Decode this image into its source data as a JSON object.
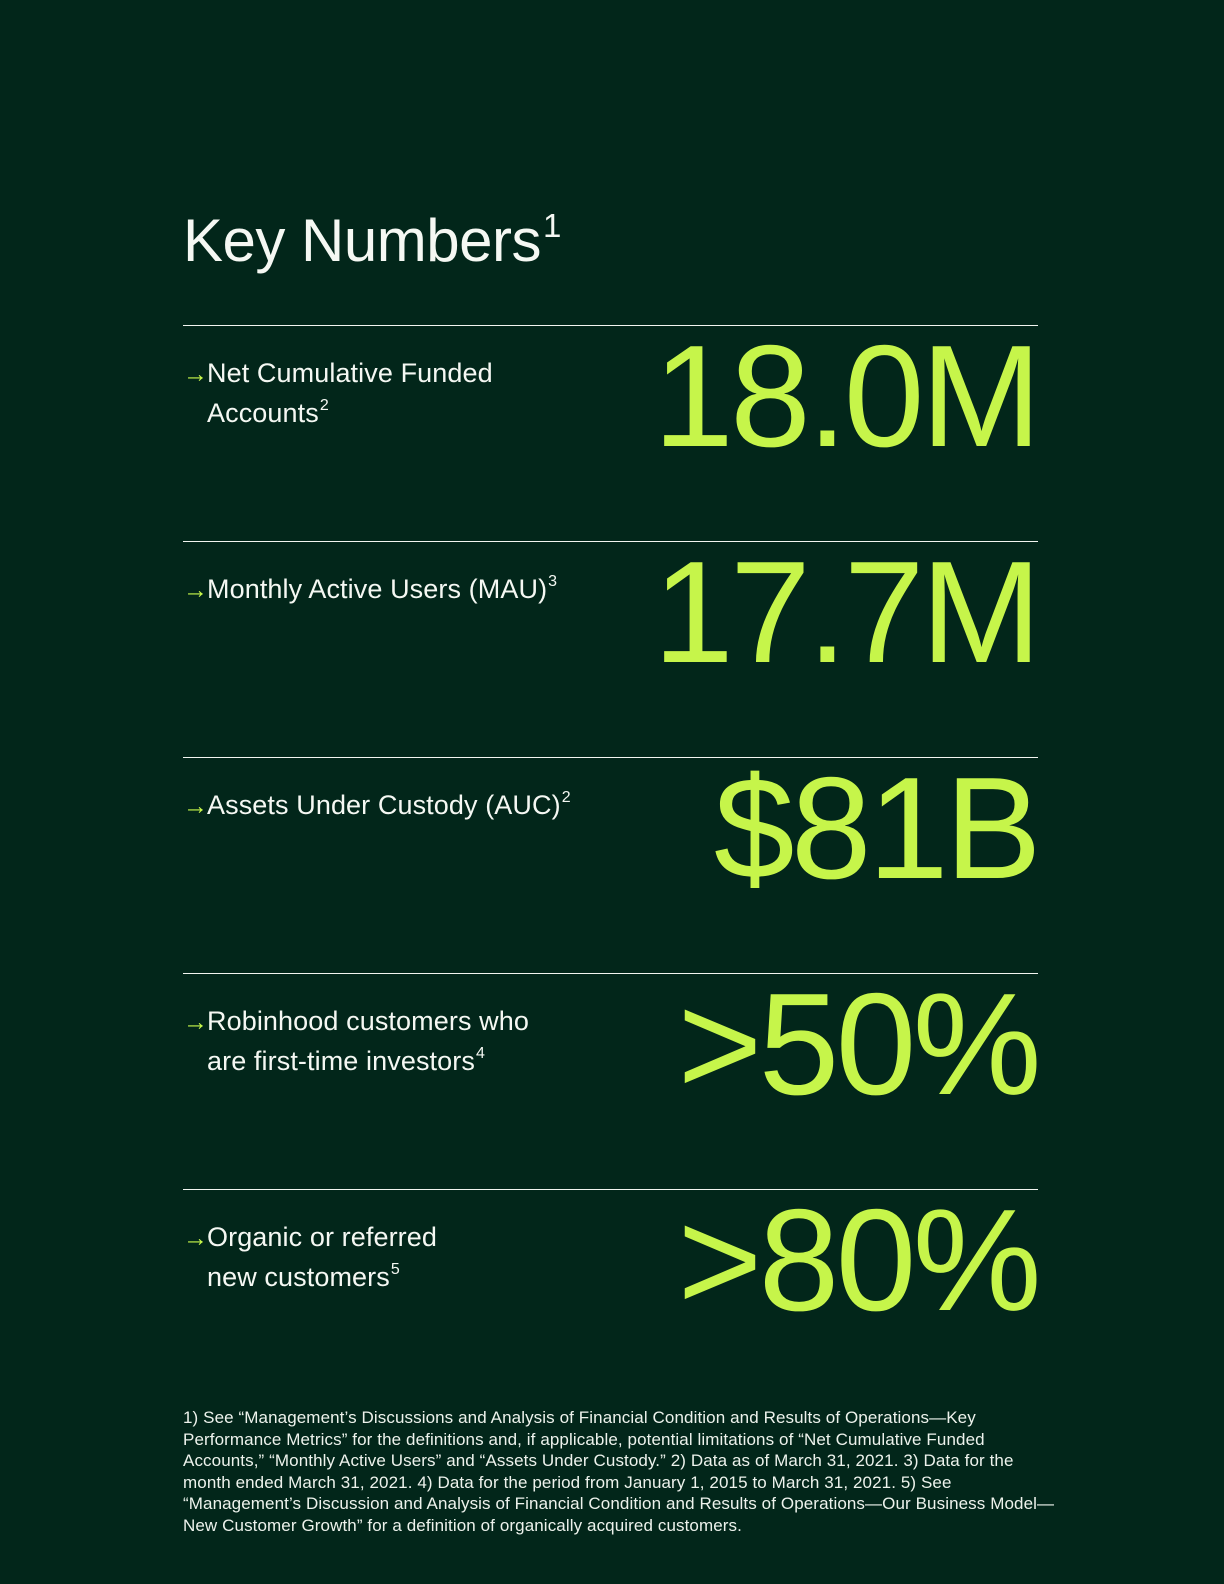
{
  "page": {
    "title": "Key Numbers",
    "title_footnote_ref": "1"
  },
  "colors": {
    "background": "#02261A",
    "accent_lime": "#C6F54A",
    "text_white": "#F5F8F3",
    "divider": "#F2F5F0"
  },
  "icons": {
    "arrow_glyph": "→"
  },
  "metrics": [
    {
      "label_line1": "Net Cumulative Funded",
      "label_line2": "Accounts",
      "footnote_ref": "2",
      "value": "18.0M"
    },
    {
      "label_line1": "Monthly Active Users (MAU)",
      "footnote_ref": "3",
      "value": "17.7M"
    },
    {
      "label_line1": "Assets Under Custody (AUC)",
      "footnote_ref": "2",
      "value": "$81B"
    },
    {
      "label_line1": "Robinhood customers who",
      "label_line2": "are first-time investors",
      "footnote_ref": "4",
      "value": ">50%"
    },
    {
      "label_line1": "Organic or referred",
      "label_line2": "new customers",
      "footnote_ref": "5",
      "value": ">80%"
    }
  ],
  "footnotes_text": "1) See “Management’s Discussions and Analysis of Financial Condition and Results of Operations—Key Performance Metrics” for the definitions and, if applicable, potential limitations of “Net Cumulative Funded Accounts,” “Monthly Active Users” and “Assets Under Custody.” 2) Data as of March 31, 2021. 3) Data for the month ended March 31, 2021. 4) Data for the period from January 1, 2015 to March 31, 2021. 5) See “Management’s Discussion and Analysis of Financial Condition and Results of Operations—Our Business Model—New Customer Growth” for a definition of organically acquired customers."
}
